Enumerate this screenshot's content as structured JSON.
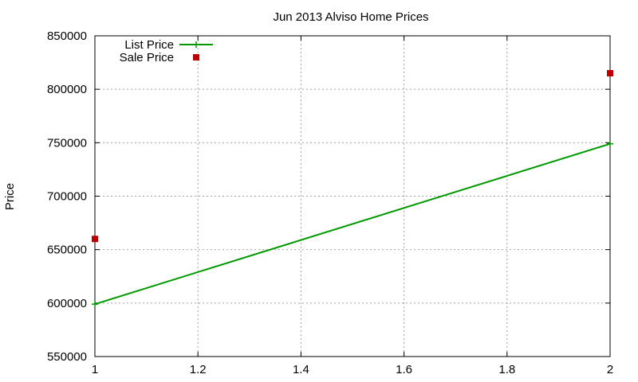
{
  "chart_data": {
    "type": "line",
    "title": "Jun 2013 Alviso Home Prices",
    "xlabel": "",
    "ylabel": "Price",
    "xlim": [
      1,
      2
    ],
    "ylim": [
      550000,
      850000
    ],
    "x_ticks": [
      1,
      1.2,
      1.4,
      1.6,
      1.8,
      2
    ],
    "x_tick_labels": [
      "1",
      "1.2",
      "1.4",
      "1.6",
      "1.8",
      "2"
    ],
    "y_ticks": [
      550000,
      600000,
      650000,
      700000,
      750000,
      800000,
      850000
    ],
    "y_tick_labels": [
      "550000",
      "600000",
      "650000",
      "700000",
      "750000",
      "800000",
      "850000"
    ],
    "grid": true,
    "legend_position": "top-left",
    "series": [
      {
        "name": "List Price",
        "style": "line-with-plus-markers",
        "color": "#009900",
        "points": [
          {
            "x": 1,
            "y": 599000
          },
          {
            "x": 2,
            "y": 749000
          }
        ]
      },
      {
        "name": "Sale Price",
        "style": "square-markers",
        "color": "#c00000",
        "points": [
          {
            "x": 1,
            "y": 660000
          },
          {
            "x": 2,
            "y": 815000
          }
        ]
      }
    ]
  }
}
